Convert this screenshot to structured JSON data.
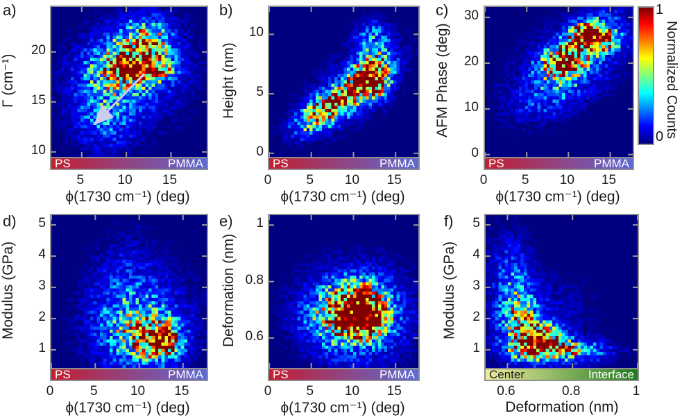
{
  "figure": {
    "background": "#ffffff",
    "frame_color": "#8f8f8f",
    "tick_color": "#999999",
    "zero_color": "#000080"
  },
  "colorbar": {
    "label": "Normalized Counts",
    "top_tick": "1",
    "bottom_tick": "0",
    "colormap": "jet",
    "stops": [
      {
        "c": "#7f0000",
        "p": 0
      },
      {
        "c": "#ff0000",
        "p": 12
      },
      {
        "c": "#ff8000",
        "p": 25
      },
      {
        "c": "#ffff00",
        "p": 37
      },
      {
        "c": "#80ff80",
        "p": 50
      },
      {
        "c": "#00ffff",
        "p": 63
      },
      {
        "c": "#0080ff",
        "p": 75
      },
      {
        "c": "#0000ff",
        "p": 87
      },
      {
        "c": "#000080",
        "p": 100
      }
    ]
  },
  "chart_data": [
    {
      "id": "a",
      "tag": "a)",
      "type": "heatmap",
      "xlabel": "ϕ(1730 cm⁻¹) (deg)",
      "ylabel": "Γ (cm⁻¹)",
      "xlim": [
        1.6,
        19.0
      ],
      "ylim": [
        9.5,
        24.5
      ],
      "xticks": [
        {
          "v": 5,
          "t": "5"
        },
        {
          "v": 10,
          "t": "10"
        },
        {
          "v": 15,
          "t": "15"
        }
      ],
      "yticks": [
        {
          "v": 10,
          "t": "10"
        },
        {
          "v": 15,
          "t": "15"
        },
        {
          "v": 20,
          "t": "20"
        }
      ],
      "bins": [
        48,
        47
      ],
      "seed": 101,
      "colormap": "jet",
      "peak": {
        "x": 11.6,
        "y": 18.1
      },
      "blobs": [
        {
          "cx": 11.6,
          "cy": 18.1,
          "sx": 1.9,
          "sy": 0.55,
          "w": 1.15
        },
        {
          "cx": 11.0,
          "cy": 19.4,
          "sx": 2.4,
          "sy": 1.5,
          "w": 0.6
        },
        {
          "cx": 12.3,
          "cy": 20.8,
          "sx": 1.5,
          "sy": 1.3,
          "w": 0.45
        },
        {
          "cx": 9.0,
          "cy": 17.5,
          "sx": 2.6,
          "sy": 1.6,
          "w": 0.35
        },
        {
          "cx": 12.0,
          "cy": 22.5,
          "sx": 2.5,
          "sy": 1.2,
          "w": 0.12
        },
        {
          "cx": 7.5,
          "cy": 13.5,
          "sx": 2.3,
          "sy": 2.1,
          "w": 0.2
        },
        {
          "cx": 10.5,
          "cy": 17.5,
          "sx": 4.6,
          "sy": 3.7,
          "w": 0.12
        }
      ],
      "bottom_bar": {
        "left_label": "PS",
        "right_label": "PMMA",
        "left_color": "#c41e30",
        "right_color": "#5c6bd6",
        "left_text_color": "#ffffff",
        "right_text_color": "#ffffff"
      },
      "annotation": {
        "type": "arrow",
        "x1": 12.0,
        "y1": 17.8,
        "x2": 6.7,
        "y2": 13.0,
        "color": "#ccccf0"
      }
    },
    {
      "id": "b",
      "tag": "b)",
      "type": "heatmap",
      "xlabel": "ϕ(1730 cm⁻¹) (deg)",
      "ylabel": "Height (nm)",
      "xlim": [
        0,
        17.7
      ],
      "ylim": [
        -0.3,
        12.3
      ],
      "xticks": [
        {
          "v": 0,
          "t": "0"
        },
        {
          "v": 5,
          "t": "5"
        },
        {
          "v": 10,
          "t": "10"
        },
        {
          "v": 15,
          "t": "15"
        }
      ],
      "yticks": [
        {
          "v": 0,
          "t": "0"
        },
        {
          "v": 5,
          "t": "5"
        },
        {
          "v": 10,
          "t": "10"
        }
      ],
      "bins": [
        48,
        47
      ],
      "seed": 202,
      "colormap": "jet",
      "peak": {
        "x": 12.0,
        "y": 6.1
      },
      "blobs": [
        {
          "cx": 8.6,
          "cy": 4.6,
          "sx": 2.6,
          "sy": 1.4,
          "rho": 0.78,
          "w": 0.85
        },
        {
          "cx": 12.0,
          "cy": 6.1,
          "sx": 1.3,
          "sy": 0.9,
          "w": 1.0
        },
        {
          "cx": 12.6,
          "cy": 7.2,
          "sx": 1.1,
          "sy": 0.8,
          "w": 0.5
        },
        {
          "cx": 12.3,
          "cy": 9.3,
          "sx": 1.4,
          "sy": 1.1,
          "w": 0.3
        },
        {
          "cx": 6.0,
          "cy": 3.2,
          "sx": 1.8,
          "sy": 0.9,
          "rho": 0.5,
          "w": 0.35
        },
        {
          "cx": 9.8,
          "cy": 5.4,
          "sx": 4.0,
          "sy": 2.4,
          "rho": 0.6,
          "w": 0.15
        }
      ],
      "bottom_bar": {
        "left_label": "PS",
        "right_label": "PMMA",
        "left_color": "#c41e30",
        "right_color": "#5c6bd6",
        "left_text_color": "#ffffff",
        "right_text_color": "#ffffff"
      }
    },
    {
      "id": "c",
      "tag": "c)",
      "type": "heatmap",
      "xlabel": "ϕ(1730 cm⁻¹) (deg)",
      "ylabel": "AFM Phase (deg)",
      "xlim": [
        0,
        17.7
      ],
      "ylim": [
        -0.5,
        32.3
      ],
      "xticks": [
        {
          "v": 0,
          "t": "0"
        },
        {
          "v": 5,
          "t": "5"
        },
        {
          "v": 10,
          "t": "10"
        },
        {
          "v": 15,
          "t": "15"
        }
      ],
      "yticks": [
        {
          "v": 0,
          "t": "0"
        },
        {
          "v": 10,
          "t": "10"
        },
        {
          "v": 20,
          "t": "20"
        },
        {
          "v": 30,
          "t": "30"
        }
      ],
      "bins": [
        48,
        47
      ],
      "seed": 303,
      "colormap": "jet",
      "peak": {
        "x": 12.4,
        "y": 26.3
      },
      "blobs": [
        {
          "cx": 11.2,
          "cy": 23.5,
          "sx": 2.4,
          "sy": 3.6,
          "rho": 0.65,
          "w": 0.75
        },
        {
          "cx": 12.4,
          "cy": 26.3,
          "sx": 1.2,
          "sy": 1.6,
          "w": 1.0
        },
        {
          "cx": 9.3,
          "cy": 19.8,
          "sx": 1.6,
          "sy": 1.8,
          "w": 0.6
        },
        {
          "cx": 14.3,
          "cy": 25.2,
          "sx": 1.4,
          "sy": 1.9,
          "w": 0.5
        },
        {
          "cx": 9.0,
          "cy": 15.0,
          "sx": 3.2,
          "sy": 4.5,
          "rho": 0.6,
          "w": 0.2
        },
        {
          "cx": 10.0,
          "cy": 20.0,
          "sx": 5.0,
          "sy": 7.5,
          "rho": 0.45,
          "w": 0.1
        }
      ],
      "bottom_bar": {
        "left_label": "PS",
        "right_label": "PMMA",
        "left_color": "#c41e30",
        "right_color": "#5c6bd6",
        "left_text_color": "#ffffff",
        "right_text_color": "#ffffff"
      }
    },
    {
      "id": "d",
      "tag": "d)",
      "type": "heatmap",
      "xlabel": "ϕ(1730 cm⁻¹) (deg)",
      "ylabel": "Modulus (GPa)",
      "xlim": [
        0,
        17.7
      ],
      "ylim": [
        0.42,
        5.31
      ],
      "xticks": [
        {
          "v": 0,
          "t": "0"
        },
        {
          "v": 5,
          "t": "5"
        },
        {
          "v": 10,
          "t": "10"
        },
        {
          "v": 15,
          "t": "15"
        }
      ],
      "yticks": [
        {
          "v": 1,
          "t": "1"
        },
        {
          "v": 2,
          "t": "2"
        },
        {
          "v": 3,
          "t": "3"
        },
        {
          "v": 4,
          "t": "4"
        },
        {
          "v": 5,
          "t": "5"
        }
      ],
      "bins": [
        48,
        48
      ],
      "seed": 404,
      "colormap": "jet",
      "peak": {
        "x": 12.6,
        "y": 1.25
      },
      "blobs": [
        {
          "cx": 12.6,
          "cy": 1.25,
          "sx": 1.1,
          "sy": 0.28,
          "w": 1.1
        },
        {
          "cx": 11.3,
          "cy": 1.45,
          "sx": 2.2,
          "sy": 0.5,
          "w": 0.5
        },
        {
          "cx": 9.5,
          "cy": 1.8,
          "sx": 3.0,
          "sy": 0.8,
          "w": 0.22
        },
        {
          "cx": 8.5,
          "cy": 2.8,
          "sx": 2.2,
          "sy": 1.1,
          "w": 0.1
        },
        {
          "cx": 10.0,
          "cy": 2.0,
          "sx": 4.5,
          "sy": 1.5,
          "w": 0.08
        }
      ],
      "bottom_bar": {
        "left_label": "PS",
        "right_label": "PMMA",
        "left_color": "#c41e30",
        "right_color": "#5c6bd6",
        "left_text_color": "#ffffff",
        "right_text_color": "#ffffff"
      }
    },
    {
      "id": "e",
      "tag": "e)",
      "type": "heatmap",
      "xlabel": "ϕ(1730 cm⁻¹) (deg)",
      "ylabel": "Deformation (nm)",
      "xlim": [
        0,
        17.7
      ],
      "ylim": [
        0.494,
        1.035
      ],
      "xticks": [
        {
          "v": 0,
          "t": "0"
        },
        {
          "v": 5,
          "t": "5"
        },
        {
          "v": 10,
          "t": "10"
        },
        {
          "v": 15,
          "t": "15"
        }
      ],
      "yticks": [
        {
          "v": 0.6,
          "t": "0.6"
        },
        {
          "v": 0.8,
          "t": "0.8"
        },
        {
          "v": 1,
          "t": "1"
        }
      ],
      "bins": [
        48,
        48
      ],
      "seed": 505,
      "colormap": "jet",
      "peak": {
        "x": 10.8,
        "y": 0.685
      },
      "blobs": [
        {
          "cx": 10.8,
          "cy": 0.685,
          "sx": 1.9,
          "sy": 0.045,
          "w": 0.85
        },
        {
          "cx": 12.1,
          "cy": 0.665,
          "sx": 1.1,
          "sy": 0.035,
          "w": 0.75
        },
        {
          "cx": 9.0,
          "cy": 0.675,
          "sx": 2.6,
          "sy": 0.06,
          "w": 0.5
        },
        {
          "cx": 10.5,
          "cy": 0.74,
          "sx": 2.2,
          "sy": 0.05,
          "w": 0.4
        },
        {
          "cx": 10.0,
          "cy": 0.66,
          "sx": 3.6,
          "sy": 0.09,
          "w": 0.22
        },
        {
          "cx": 10.5,
          "cy": 0.7,
          "sx": 4.8,
          "sy": 0.13,
          "w": 0.1
        }
      ],
      "bottom_bar": {
        "left_label": "PS",
        "right_label": "PMMA",
        "left_color": "#c41e30",
        "right_color": "#5c6bd6",
        "left_text_color": "#ffffff",
        "right_text_color": "#ffffff"
      }
    },
    {
      "id": "f",
      "tag": "f)",
      "type": "heatmap",
      "xlabel": "Deformation (nm)",
      "ylabel": "Modulus (GPa)",
      "xlim": [
        0.533,
        1.0
      ],
      "ylim": [
        0.42,
        5.31
      ],
      "xticks": [
        {
          "v": 0.6,
          "t": "0.6"
        },
        {
          "v": 0.8,
          "t": "0.8"
        },
        {
          "v": 1,
          "t": "1"
        }
      ],
      "yticks": [
        {
          "v": 1,
          "t": "1"
        },
        {
          "v": 2,
          "t": "2"
        },
        {
          "v": 3,
          "t": "3"
        },
        {
          "v": 4,
          "t": "4"
        },
        {
          "v": 5,
          "t": "5"
        }
      ],
      "bins": [
        48,
        48
      ],
      "seed": 606,
      "colormap": "jet",
      "peak": {
        "x": 0.695,
        "y": 1.35
      },
      "blobs": [
        {
          "cx": 0.695,
          "cy": 1.35,
          "sx": 0.04,
          "sy": 0.33,
          "w": 1.05
        },
        {
          "cx": 0.72,
          "cy": 1.05,
          "sx": 0.07,
          "sy": 0.22,
          "w": 0.6
        },
        {
          "cx": 0.64,
          "cy": 1.9,
          "sx": 0.035,
          "sy": 0.6,
          "w": 0.5
        },
        {
          "cx": 0.615,
          "cy": 2.9,
          "sx": 0.035,
          "sy": 0.9,
          "w": 0.2
        },
        {
          "cx": 0.8,
          "cy": 0.95,
          "sx": 0.08,
          "sy": 0.22,
          "w": 0.25
        },
        {
          "cx": 0.6,
          "cy": 4.0,
          "sx": 0.05,
          "sy": 0.8,
          "w": 0.05
        },
        {
          "cx": 0.7,
          "cy": 1.8,
          "sx": 0.11,
          "sy": 1.1,
          "w": 0.09
        }
      ],
      "bottom_bar": {
        "left_label": "Center",
        "right_label": "Interface",
        "left_color": "#efec9e",
        "right_color": "#1f7a1f",
        "left_text_color": "#1a1a1a",
        "right_text_color": "#ffffff"
      }
    }
  ]
}
